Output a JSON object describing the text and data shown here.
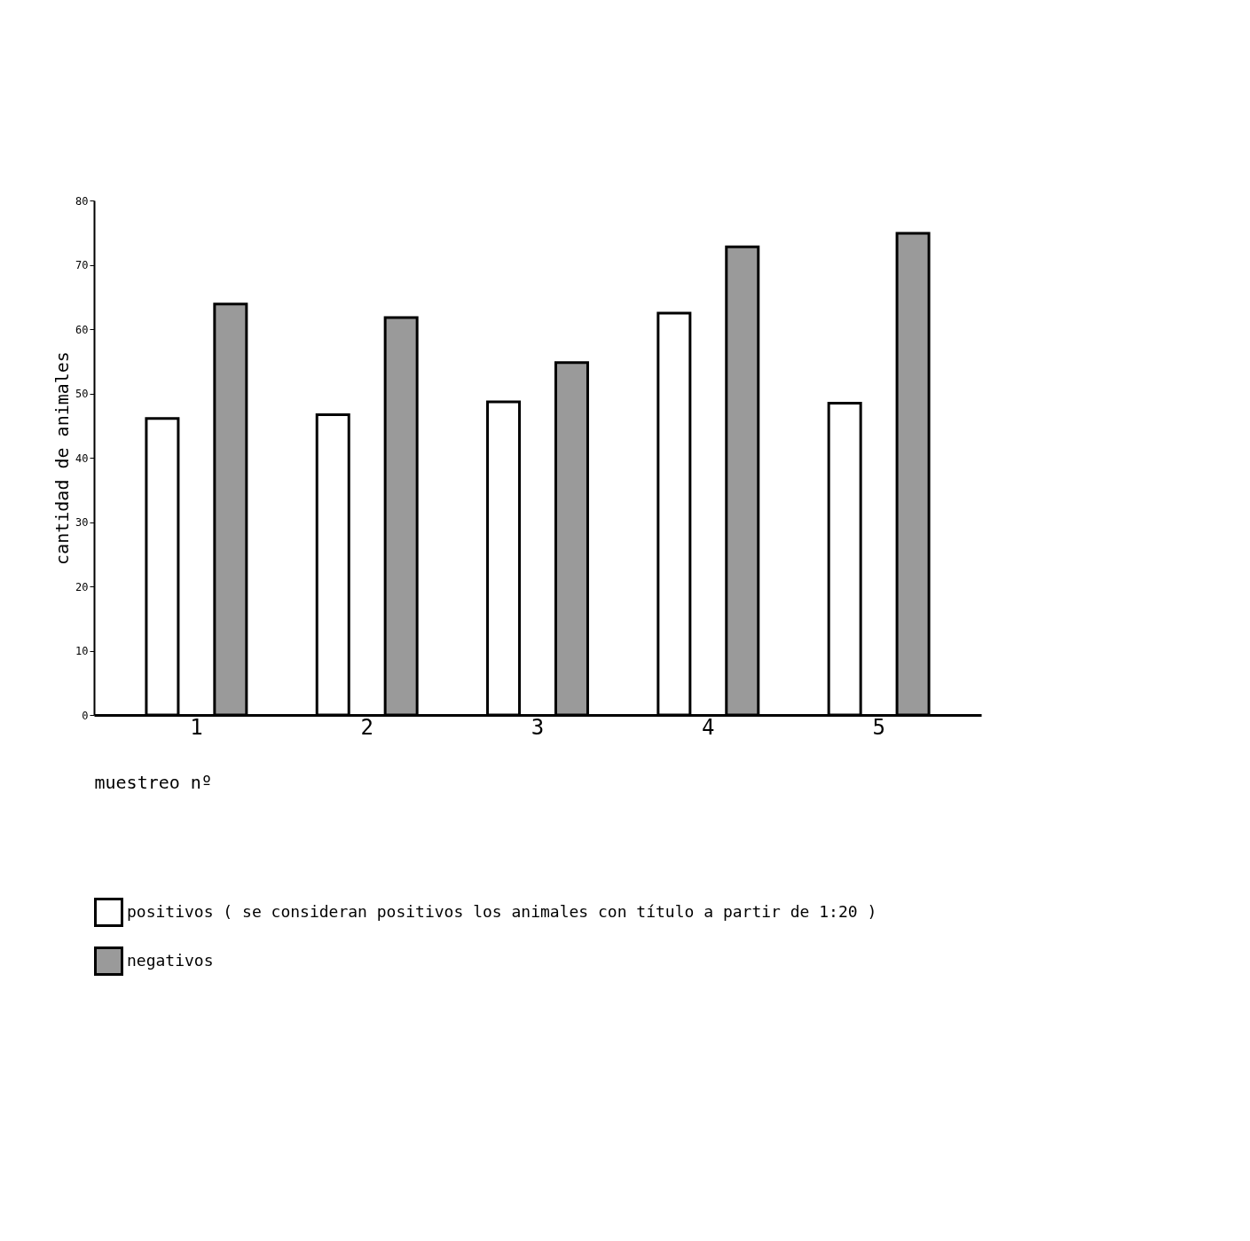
{
  "chart_data": {
    "type": "bar",
    "xlabel": "muestreo nº",
    "ylabel": "cantidad de animales",
    "categories": [
      "1",
      "2",
      "3",
      "4",
      "5"
    ],
    "series": [
      {
        "name": "positivos ( se consideran positivos los animales con título a partir de 1:20 )",
        "color": "#ffffff",
        "values": [
          46.1,
          46.7,
          48.7,
          62.5,
          48.5
        ]
      },
      {
        "name": "negativos",
        "color": "#9a9a9a",
        "values": [
          63.9,
          61.8,
          54.8,
          72.8,
          74.9
        ]
      }
    ],
    "ylim": [
      0,
      80
    ],
    "yticks": [
      0,
      10,
      20,
      30,
      40,
      50,
      60,
      70,
      80
    ],
    "grid": false,
    "legend": "bottom"
  }
}
